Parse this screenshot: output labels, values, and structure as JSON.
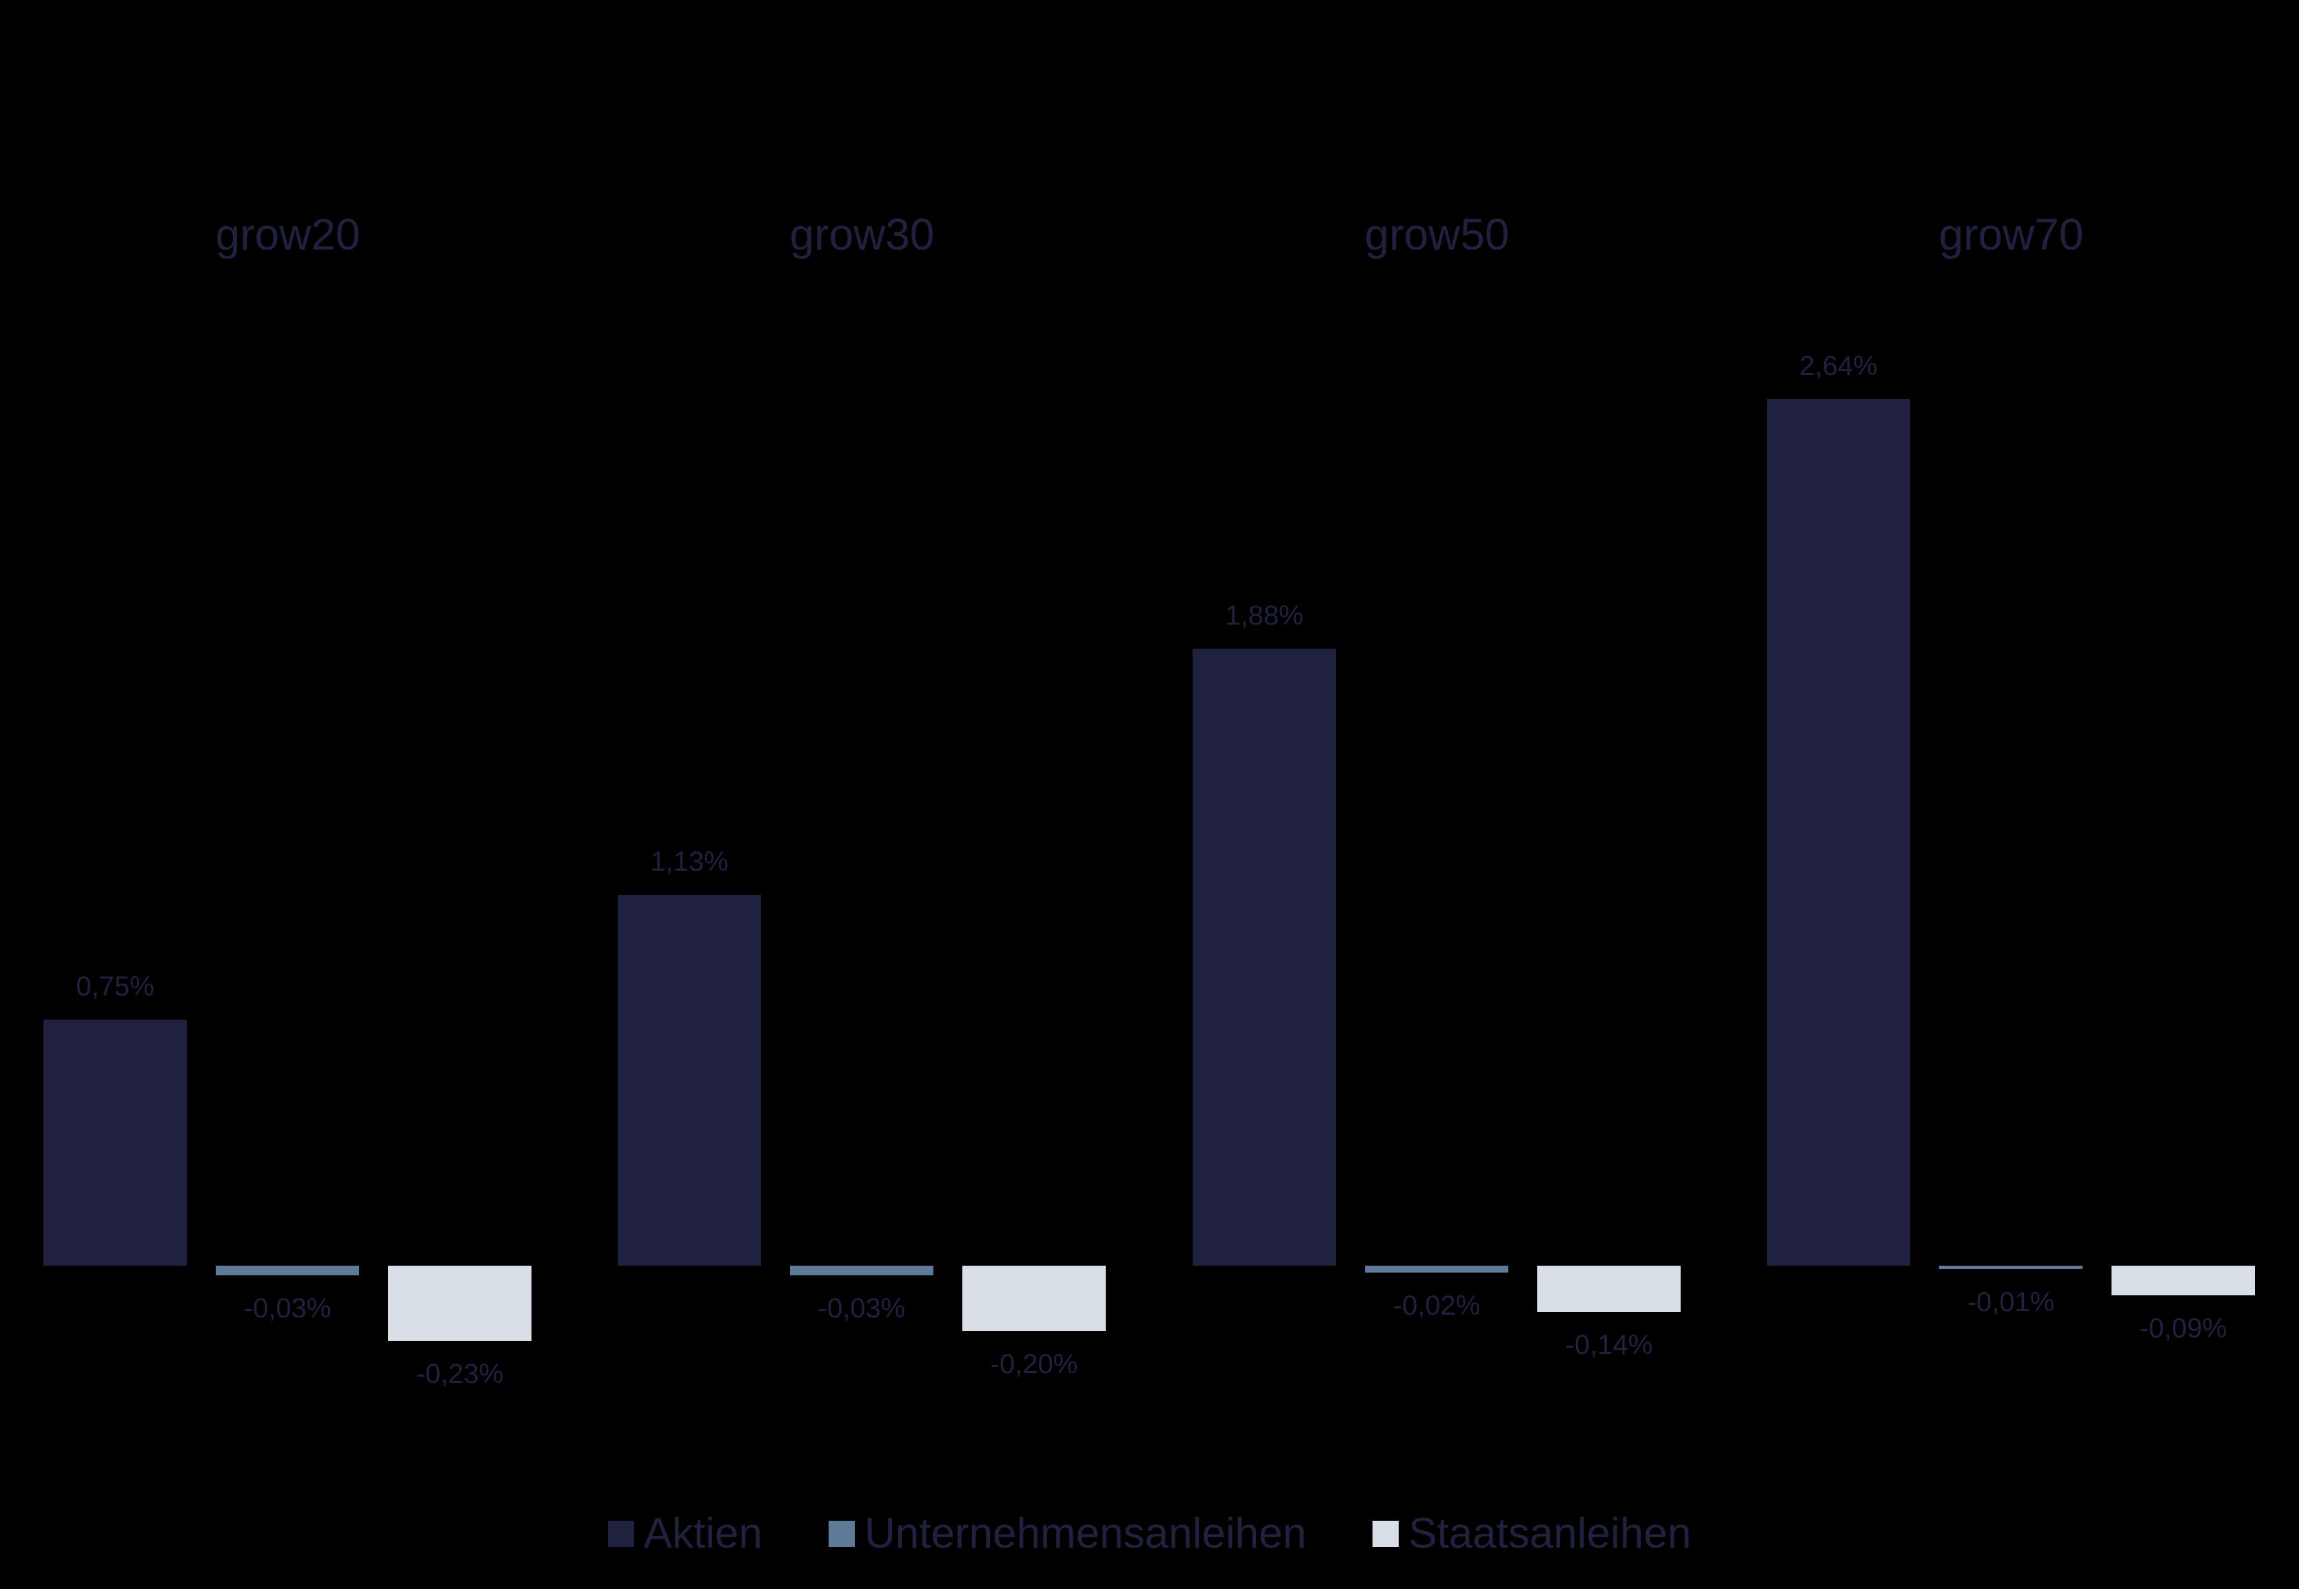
{
  "chart_data": {
    "type": "bar",
    "title": "",
    "xlabel": "",
    "ylabel": "",
    "categories": [
      "grow20",
      "grow30",
      "grow50",
      "grow70"
    ],
    "series": [
      {
        "name": "Aktien",
        "color": "#20213f",
        "values": [
          0.75,
          1.13,
          1.88,
          2.64
        ],
        "labels": [
          "0,75%",
          "1,13%",
          "1,88%",
          "2,64%"
        ]
      },
      {
        "name": "Unternehmensanleihen",
        "color": "#5f7a99",
        "values": [
          -0.03,
          -0.03,
          -0.02,
          -0.01
        ],
        "labels": [
          "-0,03%",
          "-0,03%",
          "-0,02%",
          "-0,01%"
        ]
      },
      {
        "name": "Staatsanleihen",
        "color": "#d8dfe7",
        "values": [
          -0.23,
          -0.2,
          -0.14,
          -0.09
        ],
        "labels": [
          "-0,23%",
          "-0,20%",
          "-0,14%",
          "-0,09%"
        ]
      }
    ],
    "ylim": [
      -0.3,
      2.8
    ],
    "grid": false,
    "legend_position": "bottom",
    "layout": "small-multiples, one panel per category"
  },
  "groups": [
    {
      "title": "grow20"
    },
    {
      "title": "grow30"
    },
    {
      "title": "grow50"
    },
    {
      "title": "grow70"
    }
  ],
  "legend": [
    {
      "label": "Aktien",
      "color": "#20213f"
    },
    {
      "label": "Unternehmensanleihen",
      "color": "#5f7a99"
    },
    {
      "label": "Staatsanleihen",
      "color": "#d8dfe7"
    }
  ],
  "colors": {
    "background": "#000000",
    "text": "#20213f"
  }
}
